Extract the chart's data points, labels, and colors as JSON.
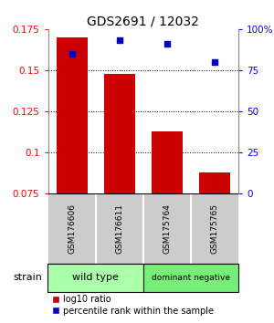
{
  "title": "GDS2691 / 12032",
  "samples": [
    "GSM176606",
    "GSM176611",
    "GSM175764",
    "GSM175765"
  ],
  "log10_ratio": [
    0.17,
    0.148,
    0.113,
    0.088
  ],
  "percentile_rank": [
    85,
    93,
    91,
    80
  ],
  "ylim_left": [
    0.075,
    0.175
  ],
  "ylim_right": [
    0,
    100
  ],
  "yticks_left": [
    0.075,
    0.1,
    0.125,
    0.15,
    0.175
  ],
  "yticks_right": [
    0,
    25,
    50,
    75,
    100
  ],
  "ytick_labels_left": [
    "0.075",
    "0.1",
    "0.125",
    "0.15",
    "0.175"
  ],
  "ytick_labels_right": [
    "0",
    "25",
    "50",
    "75",
    "100%"
  ],
  "bar_color": "#cc0000",
  "dot_color": "#0000cc",
  "groups": [
    {
      "label": "wild type",
      "indices": [
        0,
        1
      ],
      "color": "#aaffaa"
    },
    {
      "label": "dominant negative",
      "indices": [
        2,
        3
      ],
      "color": "#77ee77"
    }
  ],
  "strain_label": "strain",
  "legend_bar_label": "log10 ratio",
  "legend_dot_label": "percentile rank within the sample",
  "bar_bottom": 0.075,
  "sample_box_color": "#cccccc",
  "fig_bg": "#ffffff"
}
